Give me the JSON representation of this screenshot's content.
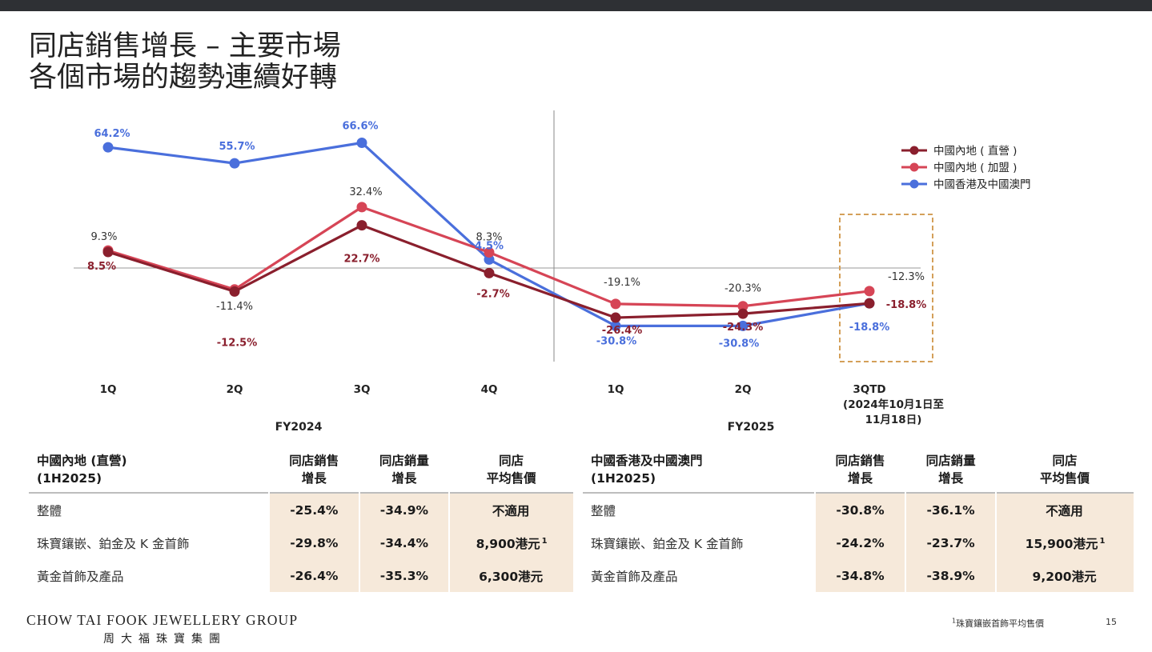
{
  "title": {
    "line1": "同店銷售增長 – 主要市場",
    "line2": "各個市場的趨勢連續好轉"
  },
  "chart_data": {
    "type": "line",
    "categories": [
      "1Q",
      "2Q",
      "3Q",
      "4Q",
      "1Q",
      "2Q",
      "3QTD"
    ],
    "category_note": [
      "(2024年10月1日至",
      "11月18日)"
    ],
    "fiscal_groups": [
      {
        "label": "FY2024",
        "from": 0,
        "to": 3
      },
      {
        "label": "FY2025",
        "from": 4,
        "to": 6
      }
    ],
    "highlight": "3QTD",
    "series": [
      {
        "name": "中國內地 ( 直營 )",
        "color": "#8a1f2d",
        "values": [
          8.5,
          -12.5,
          22.7,
          -2.7,
          -26.4,
          -24.3,
          -18.8
        ],
        "labels": [
          "8.5%",
          "-12.5%",
          "22.7%",
          "-2.7%",
          "-26.4%",
          "-24.3%",
          "-18.8%"
        ]
      },
      {
        "name": "中國內地 ( 加盟 )",
        "color": "#d64556",
        "values": [
          9.3,
          -11.4,
          32.4,
          8.3,
          -19.1,
          -20.3,
          -12.3
        ],
        "labels": [
          "9.3%",
          "-11.4%",
          "32.4%",
          "8.3%",
          "-19.1%",
          "-20.3%",
          "-12.3%"
        ]
      },
      {
        "name": "中國香港及中國澳門",
        "color": "#4a6fdc",
        "values": [
          64.2,
          55.7,
          66.6,
          4.5,
          -30.8,
          -30.8,
          -18.8
        ],
        "labels": [
          "64.2%",
          "55.7%",
          "66.6%",
          "4.5%",
          "-30.8%",
          "-30.8%",
          "-18.8%"
        ]
      }
    ],
    "legend_position": "top-right",
    "ylim": [
      -40,
      70
    ]
  },
  "table_left": {
    "header": [
      "中國內地 (直營)",
      "(1H2025)"
    ],
    "cols": [
      [
        "同店銷售",
        "增長"
      ],
      [
        "同店銷量",
        "增長"
      ],
      [
        "同店",
        "平均售價"
      ]
    ],
    "rows": [
      {
        "label": "整體",
        "c1": "-25.4%",
        "c2": "-34.9%",
        "c3": "不適用",
        "sup": ""
      },
      {
        "label": "珠寶鑲嵌、鉑金及 K 金首飾",
        "c1": "-29.8%",
        "c2": "-34.4%",
        "c3": "8,900港元",
        "sup": "1"
      },
      {
        "label": "黃金首飾及產品",
        "c1": "-26.4%",
        "c2": "-35.3%",
        "c3": "6,300港元",
        "sup": ""
      }
    ]
  },
  "table_right": {
    "header": [
      "中國香港及中國澳門",
      "(1H2025)"
    ],
    "cols": [
      [
        "同店銷售",
        "增長"
      ],
      [
        "同店銷量",
        "增長"
      ],
      [
        "同店",
        "平均售價"
      ]
    ],
    "rows": [
      {
        "label": "整體",
        "c1": "-30.8%",
        "c2": "-36.1%",
        "c3": "不適用",
        "sup": ""
      },
      {
        "label": "珠寶鑲嵌、鉑金及 K 金首飾",
        "c1": "-24.2%",
        "c2": "-23.7%",
        "c3": "15,900港元",
        "sup": "1"
      },
      {
        "label": "黃金首飾及產品",
        "c1": "-34.8%",
        "c2": "-38.9%",
        "c3": "9,200港元",
        "sup": ""
      }
    ]
  },
  "footer": {
    "logo_en": "CHOW TAI FOOK JEWELLERY GROUP",
    "logo_zh": "周大福珠寶集團",
    "footnote_mark": "1",
    "footnote": "珠寶鑲嵌首飾平均售價",
    "page": "15"
  }
}
